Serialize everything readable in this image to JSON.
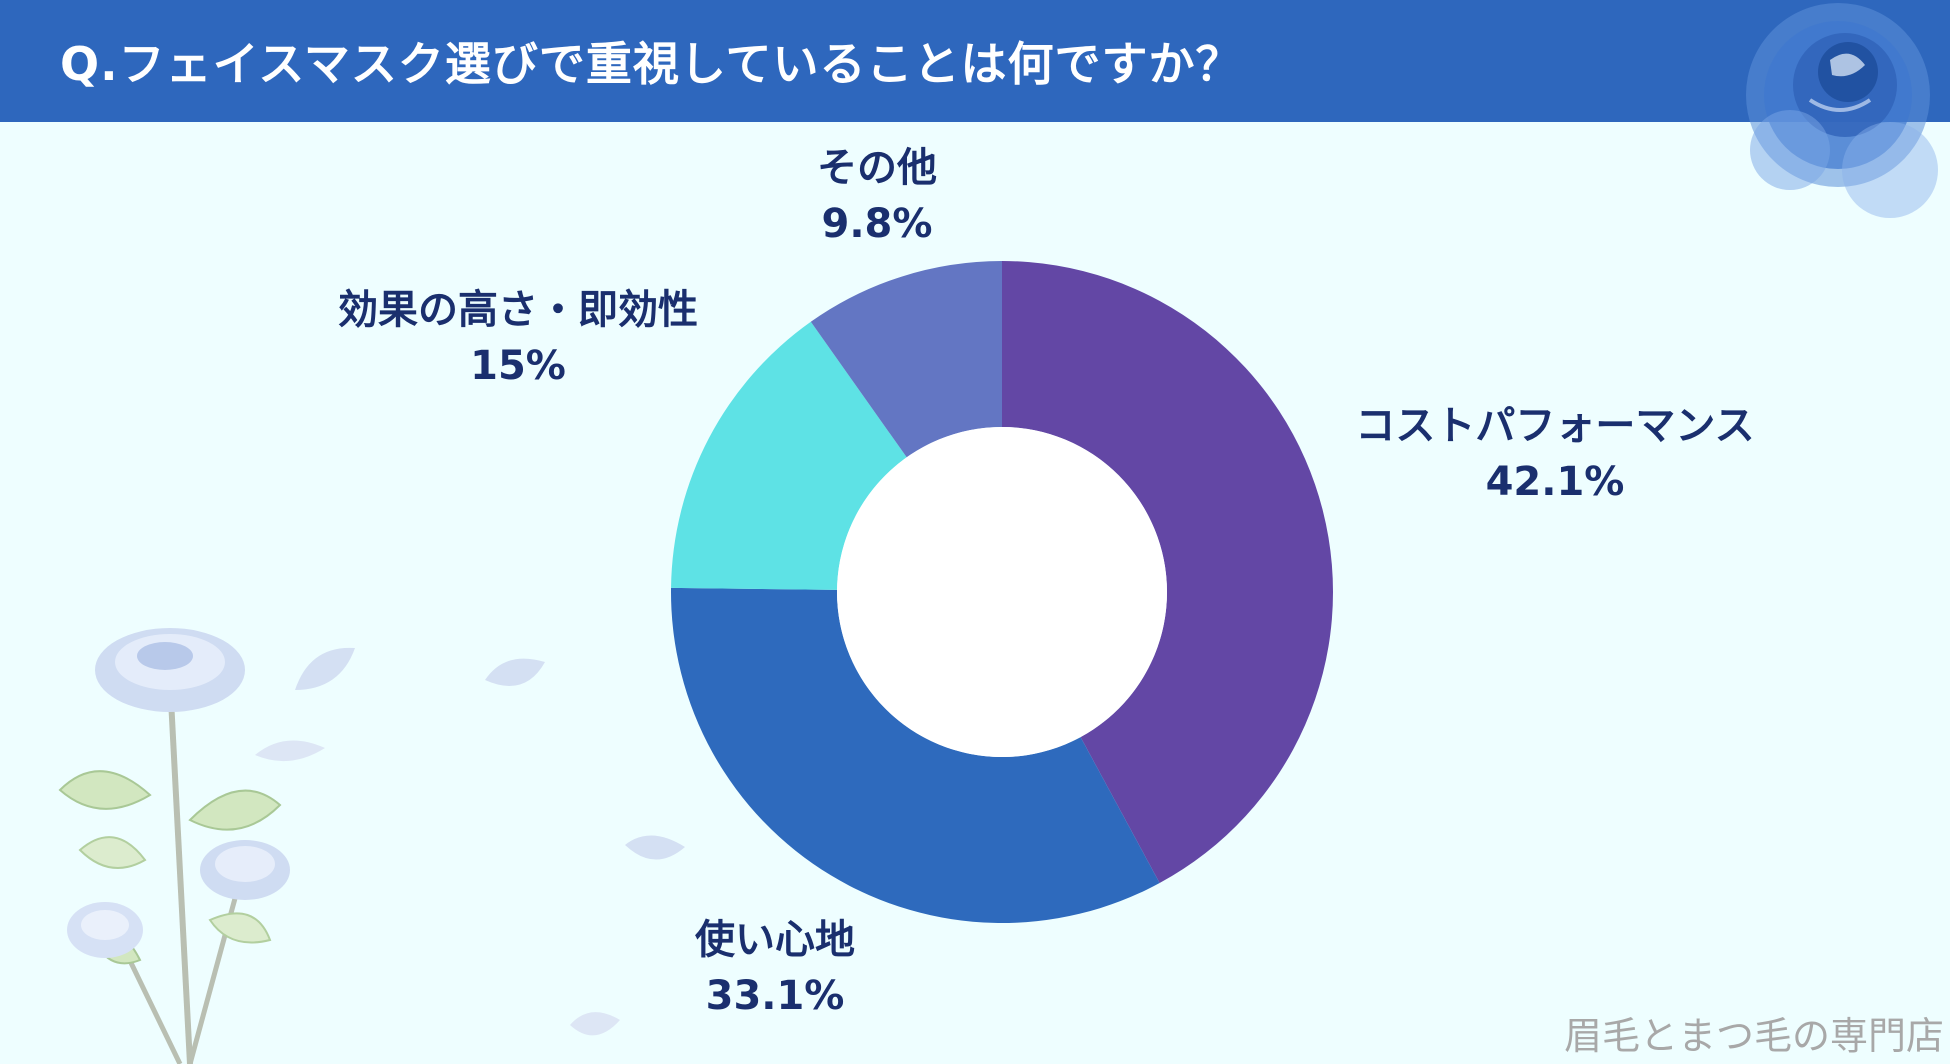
{
  "header": {
    "title": "Q.フェイスマスク選びで重視していることは何ですか？"
  },
  "footer": {
    "text": "眉毛とまつ毛の専門店"
  },
  "chart_data": {
    "type": "pie",
    "style": "donut",
    "title": "Q.フェイスマスク選びで重視していることは何ですか？",
    "categories": [
      "コストパフォーマンス",
      "使い心地",
      "効果の高さ・即効性",
      "その他"
    ],
    "values": [
      42.1,
      33.1,
      15,
      9.8
    ],
    "value_labels": [
      "42.1%",
      "33.1%",
      "15%",
      "9.8%"
    ],
    "colors": [
      "#6347a5",
      "#2e6abd",
      "#5ee2e5",
      "#6376c3"
    ],
    "unit": "%"
  }
}
